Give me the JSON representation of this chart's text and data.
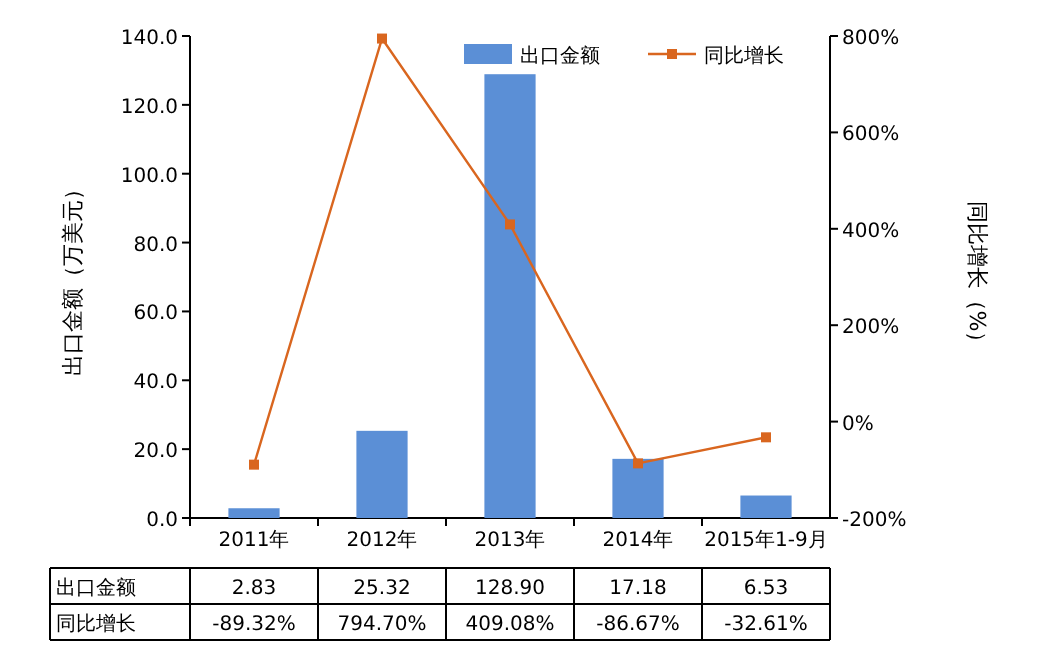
{
  "chart_data": {
    "type": "bar",
    "categories": [
      "2011年",
      "2012年",
      "2013年",
      "2014年",
      "2015年1-9月"
    ],
    "ylabel": "出口金额（万美元）",
    "y2label": "同比增长（%）",
    "ylim": [
      0,
      140
    ],
    "yticks": [
      {
        "value": 0,
        "label": "0.0"
      },
      {
        "value": 20,
        "label": "20.0"
      },
      {
        "value": 40,
        "label": "40.0"
      },
      {
        "value": 60,
        "label": "60.0"
      },
      {
        "value": 80,
        "label": "80.0"
      },
      {
        "value": 100,
        "label": "100.0"
      },
      {
        "value": 120,
        "label": "120.0"
      },
      {
        "value": 140,
        "label": "140.0"
      }
    ],
    "y2lim": [
      -200,
      800
    ],
    "y2ticks": [
      {
        "value": -200,
        "label": "-200%"
      },
      {
        "value": 0,
        "label": "0%"
      },
      {
        "value": 200,
        "label": "200%"
      },
      {
        "value": 400,
        "label": "400%"
      },
      {
        "value": 600,
        "label": "600%"
      },
      {
        "value": 800,
        "label": "800%"
      }
    ],
    "legend": "top right",
    "grid": false,
    "series": [
      {
        "name": "出口金额",
        "color": "#5b8fd6",
        "values": [
          2.83,
          25.32,
          128.9,
          17.18,
          6.53
        ],
        "value_labels": [
          "2.83",
          "25.32",
          "128.90",
          "17.18",
          "6.53"
        ]
      },
      {
        "name": "同比增长",
        "type": "line",
        "axis": "y2",
        "marker": "square",
        "color": "#d9661f",
        "values": [
          -89.32,
          794.7,
          409.08,
          -86.67,
          -32.61
        ],
        "value_labels": [
          "-89.32%",
          "794.70%",
          "409.08%",
          "-86.67%",
          "-32.61%"
        ]
      }
    ]
  }
}
